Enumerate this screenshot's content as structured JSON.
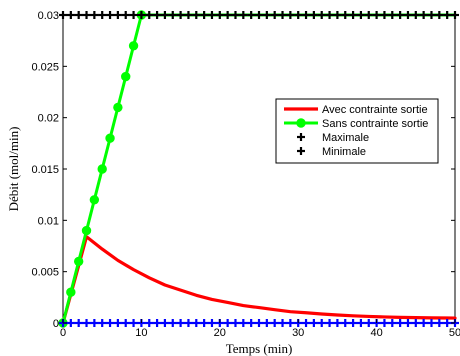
{
  "chart_data": {
    "type": "line",
    "xlabel": "Temps (min)",
    "ylabel": "Débit (mol/min)",
    "xlim": [
      0,
      50
    ],
    "ylim": [
      0,
      0.03
    ],
    "x_ticks": [
      0,
      10,
      20,
      30,
      40,
      50
    ],
    "y_ticks": [
      0,
      0.005,
      0.01,
      0.015,
      0.02,
      0.025,
      0.03
    ],
    "x_tick_labels": [
      "0",
      "10",
      "20",
      "30",
      "40",
      "50"
    ],
    "y_tick_labels": [
      "0",
      "0.005",
      "0.01",
      "0.015",
      "0.02",
      "0.025",
      "0.03"
    ],
    "grid": false,
    "legend_position": "right",
    "legend_labels": [
      "Avec contrainte sortie",
      "Sans contrainte sortie",
      "Maximale",
      "Minimale"
    ],
    "series": [
      {
        "name": "Avec contrainte sortie",
        "color": "#ff0000",
        "marker": "none",
        "x": [
          0,
          3,
          5,
          7,
          9,
          11,
          13,
          15,
          17,
          19,
          21,
          23,
          25,
          27,
          29,
          31,
          33,
          35,
          37,
          39,
          41,
          43,
          45,
          47,
          49,
          50
        ],
        "y": [
          0,
          0.0084,
          0.0072,
          0.0061,
          0.0052,
          0.0044,
          0.0037,
          0.0032,
          0.0027,
          0.0023,
          0.002,
          0.0017,
          0.0015,
          0.0013,
          0.0011,
          0.001,
          0.00088,
          0.00078,
          0.0007,
          0.00064,
          0.00059,
          0.00055,
          0.00052,
          0.0005,
          0.00049,
          0.00048
        ]
      },
      {
        "name": "Sans contrainte sortie",
        "color": "#00ff00",
        "marker": "circle",
        "x": [
          0,
          1,
          2,
          3,
          4,
          5,
          6,
          7,
          8,
          9,
          10,
          20,
          30,
          40,
          50
        ],
        "y": [
          0,
          0.003,
          0.006,
          0.009,
          0.012,
          0.015,
          0.018,
          0.021,
          0.024,
          0.027,
          0.03,
          0.03,
          0.03,
          0.03,
          0.03
        ]
      },
      {
        "name": "Maximale",
        "color": "#000000",
        "marker": "plus",
        "x": [
          0,
          1,
          2,
          3,
          4,
          5,
          6,
          7,
          8,
          9,
          10,
          11,
          12,
          13,
          14,
          15,
          16,
          17,
          18,
          19,
          20,
          21,
          22,
          23,
          24,
          25,
          26,
          27,
          28,
          29,
          30,
          31,
          32,
          33,
          34,
          35,
          36,
          37,
          38,
          39,
          40,
          41,
          42,
          43,
          44,
          45,
          46,
          47,
          48,
          49,
          50
        ],
        "y": [
          0.03,
          0.03,
          0.03,
          0.03,
          0.03,
          0.03,
          0.03,
          0.03,
          0.03,
          0.03,
          0.03,
          0.03,
          0.03,
          0.03,
          0.03,
          0.03,
          0.03,
          0.03,
          0.03,
          0.03,
          0.03,
          0.03,
          0.03,
          0.03,
          0.03,
          0.03,
          0.03,
          0.03,
          0.03,
          0.03,
          0.03,
          0.03,
          0.03,
          0.03,
          0.03,
          0.03,
          0.03,
          0.03,
          0.03,
          0.03,
          0.03,
          0.03,
          0.03,
          0.03,
          0.03,
          0.03,
          0.03,
          0.03,
          0.03,
          0.03,
          0.03
        ]
      },
      {
        "name": "Minimale",
        "color": "#0000ff",
        "marker": "plus",
        "x": [
          0,
          1,
          2,
          3,
          4,
          5,
          6,
          7,
          8,
          9,
          10,
          11,
          12,
          13,
          14,
          15,
          16,
          17,
          18,
          19,
          20,
          21,
          22,
          23,
          24,
          25,
          26,
          27,
          28,
          29,
          30,
          31,
          32,
          33,
          34,
          35,
          36,
          37,
          38,
          39,
          40,
          41,
          42,
          43,
          44,
          45,
          46,
          47,
          48,
          49,
          50
        ],
        "y": [
          0,
          0,
          0,
          0,
          0,
          0,
          0,
          0,
          0,
          0,
          0,
          0,
          0,
          0,
          0,
          0,
          0,
          0,
          0,
          0,
          0,
          0,
          0,
          0,
          0,
          0,
          0,
          0,
          0,
          0,
          0,
          0,
          0,
          0,
          0,
          0,
          0,
          0,
          0,
          0,
          0,
          0,
          0,
          0,
          0,
          0,
          0,
          0,
          0,
          0,
          0
        ]
      }
    ]
  }
}
